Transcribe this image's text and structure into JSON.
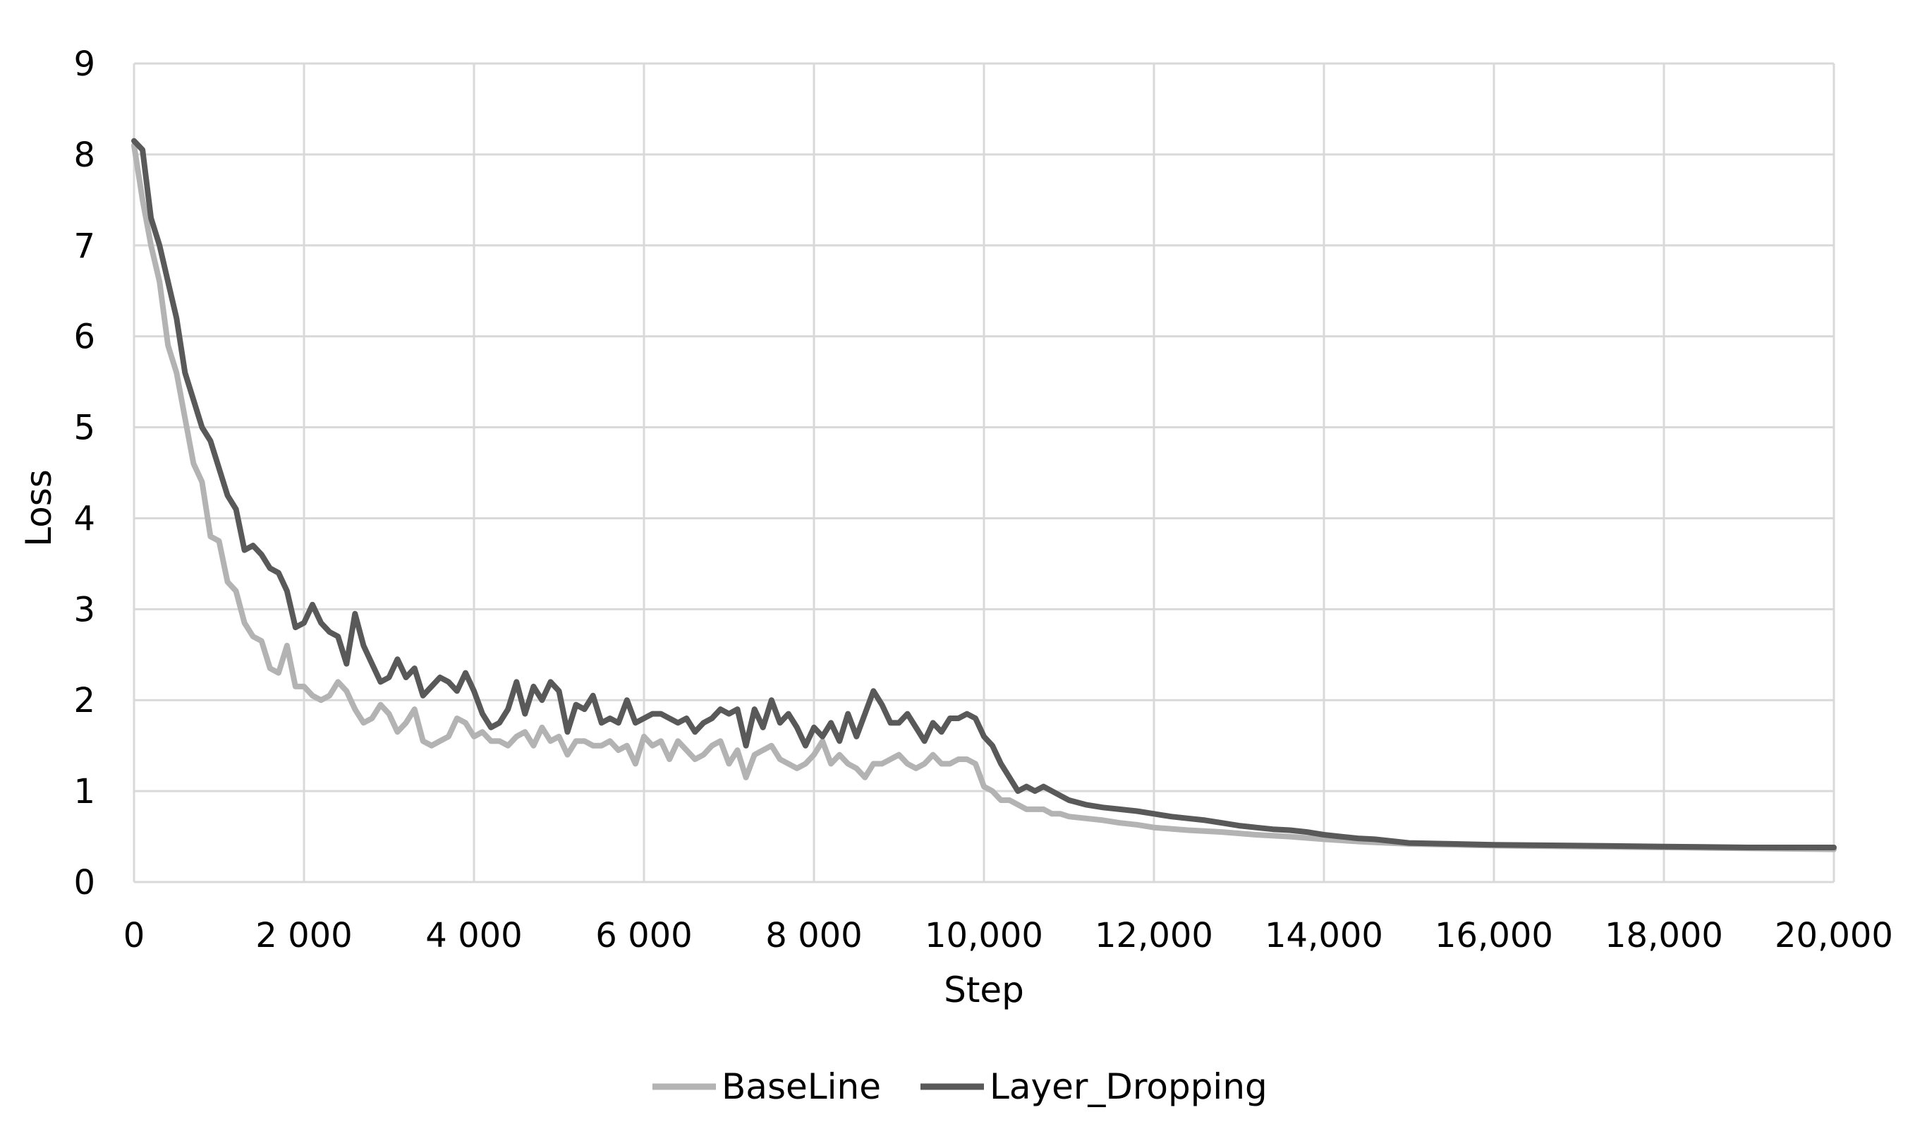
{
  "chart_data": {
    "type": "line",
    "xlabel": "Step",
    "ylabel": "Loss",
    "xlim": [
      0,
      20000
    ],
    "ylim": [
      0,
      9
    ],
    "grid": true,
    "legend_position": "bottom",
    "x_ticks": [
      {
        "value": 0,
        "label": "0"
      },
      {
        "value": 2000,
        "label": "2 000"
      },
      {
        "value": 4000,
        "label": "4 000"
      },
      {
        "value": 6000,
        "label": "6 000"
      },
      {
        "value": 8000,
        "label": "8 000"
      },
      {
        "value": 10000,
        "label": "10,000"
      },
      {
        "value": 12000,
        "label": "12,000"
      },
      {
        "value": 14000,
        "label": "14,000"
      },
      {
        "value": 16000,
        "label": "16,000"
      },
      {
        "value": 18000,
        "label": "18,000"
      },
      {
        "value": 20000,
        "label": "20,000"
      }
    ],
    "y_ticks": [
      {
        "value": 0,
        "label": "0"
      },
      {
        "value": 1,
        "label": "1"
      },
      {
        "value": 2,
        "label": "2"
      },
      {
        "value": 3,
        "label": "3"
      },
      {
        "value": 4,
        "label": "4"
      },
      {
        "value": 5,
        "label": "5"
      },
      {
        "value": 6,
        "label": "6"
      },
      {
        "value": 7,
        "label": "7"
      },
      {
        "value": 8,
        "label": "8"
      },
      {
        "value": 9,
        "label": "9"
      }
    ],
    "series": [
      {
        "name": "BaseLine",
        "color": "#b3b3b3",
        "x": [
          0,
          100,
          200,
          300,
          400,
          500,
          600,
          700,
          800,
          900,
          1000,
          1100,
          1200,
          1300,
          1400,
          1500,
          1600,
          1700,
          1800,
          1900,
          2000,
          2100,
          2200,
          2300,
          2400,
          2500,
          2600,
          2700,
          2800,
          2900,
          3000,
          3100,
          3200,
          3300,
          3400,
          3500,
          3600,
          3700,
          3800,
          3900,
          4000,
          4100,
          4200,
          4300,
          4400,
          4500,
          4600,
          4700,
          4800,
          4900,
          5000,
          5100,
          5200,
          5300,
          5400,
          5500,
          5600,
          5700,
          5800,
          5900,
          6000,
          6100,
          6200,
          6300,
          6400,
          6500,
          6600,
          6700,
          6800,
          6900,
          7000,
          7100,
          7200,
          7300,
          7400,
          7500,
          7600,
          7700,
          7800,
          7900,
          8000,
          8100,
          8200,
          8300,
          8400,
          8500,
          8600,
          8700,
          8800,
          8900,
          9000,
          9100,
          9200,
          9300,
          9400,
          9500,
          9600,
          9700,
          9800,
          9900,
          10000,
          10100,
          10200,
          10300,
          10400,
          10500,
          10600,
          10700,
          10800,
          10900,
          11000,
          11200,
          11400,
          11600,
          11800,
          12000,
          12400,
          12800,
          13200,
          13600,
          14000,
          14500,
          15000,
          16000,
          17000,
          18000,
          19000,
          20000
        ],
        "y": [
          8.1,
          7.5,
          7.0,
          6.6,
          5.9,
          5.6,
          5.1,
          4.6,
          4.4,
          3.8,
          3.75,
          3.3,
          3.2,
          2.85,
          2.7,
          2.65,
          2.35,
          2.3,
          2.6,
          2.15,
          2.15,
          2.05,
          2.0,
          2.05,
          2.2,
          2.1,
          1.9,
          1.75,
          1.8,
          1.95,
          1.85,
          1.65,
          1.75,
          1.9,
          1.55,
          1.5,
          1.55,
          1.6,
          1.8,
          1.75,
          1.6,
          1.65,
          1.55,
          1.55,
          1.5,
          1.6,
          1.65,
          1.5,
          1.7,
          1.55,
          1.6,
          1.4,
          1.55,
          1.55,
          1.5,
          1.5,
          1.55,
          1.45,
          1.5,
          1.3,
          1.6,
          1.5,
          1.55,
          1.35,
          1.55,
          1.45,
          1.35,
          1.4,
          1.5,
          1.55,
          1.3,
          1.45,
          1.15,
          1.4,
          1.45,
          1.5,
          1.35,
          1.3,
          1.25,
          1.3,
          1.4,
          1.55,
          1.3,
          1.4,
          1.3,
          1.25,
          1.15,
          1.3,
          1.3,
          1.35,
          1.4,
          1.3,
          1.25,
          1.3,
          1.4,
          1.3,
          1.3,
          1.35,
          1.35,
          1.3,
          1.05,
          1.0,
          0.9,
          0.9,
          0.85,
          0.8,
          0.8,
          0.8,
          0.75,
          0.75,
          0.72,
          0.7,
          0.68,
          0.65,
          0.63,
          0.6,
          0.57,
          0.55,
          0.52,
          0.5,
          0.47,
          0.44,
          0.42,
          0.4,
          0.39,
          0.38,
          0.37,
          0.36
        ]
      },
      {
        "name": "Layer_Dropping",
        "color": "#595959",
        "x": [
          0,
          100,
          200,
          300,
          400,
          500,
          600,
          700,
          800,
          900,
          1000,
          1100,
          1200,
          1300,
          1400,
          1500,
          1600,
          1700,
          1800,
          1900,
          2000,
          2100,
          2200,
          2300,
          2400,
          2500,
          2600,
          2700,
          2800,
          2900,
          3000,
          3100,
          3200,
          3300,
          3400,
          3500,
          3600,
          3700,
          3800,
          3900,
          4000,
          4100,
          4200,
          4300,
          4400,
          4500,
          4600,
          4700,
          4800,
          4900,
          5000,
          5100,
          5200,
          5300,
          5400,
          5500,
          5600,
          5700,
          5800,
          5900,
          6000,
          6100,
          6200,
          6300,
          6400,
          6500,
          6600,
          6700,
          6800,
          6900,
          7000,
          7100,
          7200,
          7300,
          7400,
          7500,
          7600,
          7700,
          7800,
          7900,
          8000,
          8100,
          8200,
          8300,
          8400,
          8500,
          8600,
          8700,
          8800,
          8900,
          9000,
          9100,
          9200,
          9300,
          9400,
          9500,
          9600,
          9700,
          9800,
          9900,
          10000,
          10100,
          10200,
          10300,
          10400,
          10500,
          10600,
          10700,
          10800,
          10900,
          11000,
          11200,
          11400,
          11600,
          11800,
          12000,
          12200,
          12400,
          12600,
          12800,
          13000,
          13200,
          13400,
          13600,
          13800,
          14000,
          14200,
          14400,
          14600,
          14800,
          15000,
          15500,
          16000,
          17000,
          18000,
          19000,
          20000
        ],
        "y": [
          8.15,
          8.05,
          7.3,
          7.0,
          6.6,
          6.2,
          5.6,
          5.3,
          5.0,
          4.85,
          4.55,
          4.25,
          4.1,
          3.65,
          3.7,
          3.6,
          3.45,
          3.4,
          3.2,
          2.8,
          2.85,
          3.05,
          2.85,
          2.75,
          2.7,
          2.4,
          2.95,
          2.6,
          2.4,
          2.2,
          2.25,
          2.45,
          2.25,
          2.35,
          2.05,
          2.15,
          2.25,
          2.2,
          2.1,
          2.3,
          2.1,
          1.85,
          1.7,
          1.75,
          1.9,
          2.2,
          1.85,
          2.15,
          2.0,
          2.2,
          2.1,
          1.65,
          1.95,
          1.9,
          2.05,
          1.75,
          1.8,
          1.75,
          2.0,
          1.75,
          1.8,
          1.85,
          1.85,
          1.8,
          1.75,
          1.8,
          1.65,
          1.75,
          1.8,
          1.9,
          1.85,
          1.9,
          1.5,
          1.9,
          1.7,
          2.0,
          1.75,
          1.85,
          1.7,
          1.5,
          1.7,
          1.6,
          1.75,
          1.55,
          1.85,
          1.6,
          1.85,
          2.1,
          1.95,
          1.75,
          1.75,
          1.85,
          1.7,
          1.55,
          1.75,
          1.65,
          1.8,
          1.8,
          1.85,
          1.8,
          1.6,
          1.5,
          1.3,
          1.15,
          1.0,
          1.05,
          1.0,
          1.05,
          1.0,
          0.95,
          0.9,
          0.85,
          0.82,
          0.8,
          0.78,
          0.75,
          0.72,
          0.7,
          0.68,
          0.65,
          0.62,
          0.6,
          0.58,
          0.57,
          0.55,
          0.52,
          0.5,
          0.48,
          0.47,
          0.45,
          0.43,
          0.42,
          0.41,
          0.4,
          0.39,
          0.38,
          0.38
        ]
      }
    ]
  }
}
